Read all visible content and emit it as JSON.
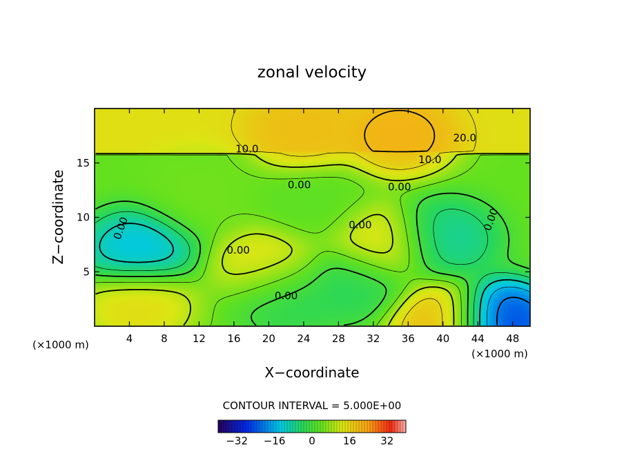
{
  "chart_data": {
    "type": "heatmap",
    "title": "zonal velocity",
    "xlabel": "X−coordinate",
    "ylabel": "Z−coordinate",
    "x_unit_left": "(×1000 m)",
    "x_unit_right": "(×1000 m)",
    "xlim": [
      0,
      50
    ],
    "ylim": [
      0,
      20
    ],
    "x_ticks": [
      4,
      8,
      12,
      16,
      20,
      24,
      28,
      32,
      36,
      40,
      44,
      48
    ],
    "y_ticks": [
      5,
      10,
      15
    ],
    "contour_interval_text": "CONTOUR INTERVAL = 5.000E+00",
    "contour_labels": [
      "0.00",
      "0.00",
      "0.00",
      "0.00",
      "0.00",
      "0.00",
      "0.00",
      "10.0",
      "10.0",
      "20.0"
    ],
    "colorbar": {
      "range": [
        -40,
        40
      ],
      "ticks": [
        -32,
        -16,
        0,
        16,
        32
      ],
      "tick_labels": [
        "−32",
        "−16",
        "0",
        "16",
        "32"
      ]
    },
    "features": [
      {
        "x": 5,
        "z": 7,
        "value": -16
      },
      {
        "x": 5,
        "z": 2,
        "value": 16
      },
      {
        "x": 20,
        "z": 5.5,
        "value": 16
      },
      {
        "x": 33,
        "z": 7.5,
        "value": 16
      },
      {
        "x": 40,
        "z": 8,
        "value": -10
      },
      {
        "x": 46.5,
        "z": 0.5,
        "value": -30
      },
      {
        "x": 40,
        "z": 0.5,
        "value": 22
      },
      {
        "x": 24,
        "z": 18,
        "value": 20
      },
      {
        "x": 35,
        "z": 17.5,
        "value": 22
      },
      {
        "x": 22,
        "z": 3,
        "value": -5
      },
      {
        "x": 30,
        "z": 4,
        "value": -5
      },
      {
        "x": 25,
        "z": 11,
        "value": 3
      },
      {
        "x": 12,
        "z": 12,
        "value": 5
      }
    ],
    "colors": {
      "background": "#ffffff",
      "contour": "#000000"
    }
  }
}
